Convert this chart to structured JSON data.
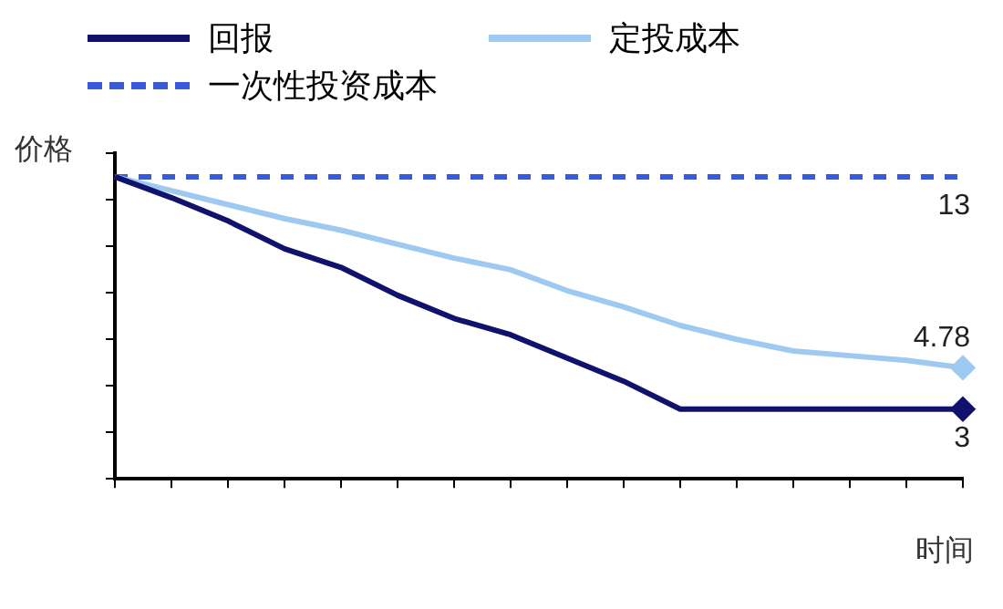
{
  "chart_data": {
    "type": "line",
    "xlabel": "时间",
    "ylabel": "价格",
    "legend": "top left",
    "grid": false,
    "ylim": [
      0,
      14
    ],
    "yticks": [
      {
        "value": 0,
        "label": null
      },
      {
        "value": 2,
        "label": null
      },
      {
        "value": 4,
        "label": null
      },
      {
        "value": 6,
        "label": null
      },
      {
        "value": 8,
        "label": null
      },
      {
        "value": 10,
        "label": null
      },
      {
        "value": 12,
        "label": null
      },
      {
        "value": 14,
        "label": null
      }
    ],
    "categories": [
      null,
      null,
      null,
      null,
      null,
      null,
      null,
      null,
      null,
      null,
      null,
      null,
      null,
      null,
      null,
      null
    ],
    "series": [
      {
        "name": "回报",
        "color": "#10126e",
        "line_style": "solid",
        "values": [
          13,
          12.1,
          11.1,
          9.9,
          9.1,
          7.9,
          6.9,
          6.2,
          5.2,
          4.2,
          3,
          3,
          3,
          3,
          3,
          3
        ],
        "value_labels": [
          null,
          null,
          null,
          null,
          null,
          null,
          null,
          null,
          null,
          null,
          null,
          null,
          null,
          null,
          null,
          "3"
        ]
      },
      {
        "name": "定投成本",
        "color": "#9ec9f0",
        "line_style": "solid",
        "values": [
          13,
          12.4,
          11.8,
          11.2,
          10.7,
          10.1,
          9.5,
          9,
          8.1,
          7.4,
          6.6,
          6,
          5.5,
          5.3,
          5.1,
          4.78
        ],
        "value_labels": [
          null,
          null,
          null,
          null,
          null,
          null,
          null,
          null,
          null,
          null,
          null,
          null,
          null,
          null,
          null,
          "4.78"
        ]
      },
      {
        "name": "一次性投资成本",
        "color": "#3a5bd9",
        "line_style": "dashed",
        "marker": "none",
        "values": [
          13,
          13,
          13,
          13,
          13,
          13,
          13,
          13,
          13,
          13,
          13,
          13,
          13,
          13,
          13,
          13
        ],
        "value_labels": [
          null,
          null,
          null,
          null,
          null,
          null,
          null,
          null,
          null,
          null,
          null,
          null,
          null,
          null,
          null,
          "13"
        ]
      }
    ]
  }
}
